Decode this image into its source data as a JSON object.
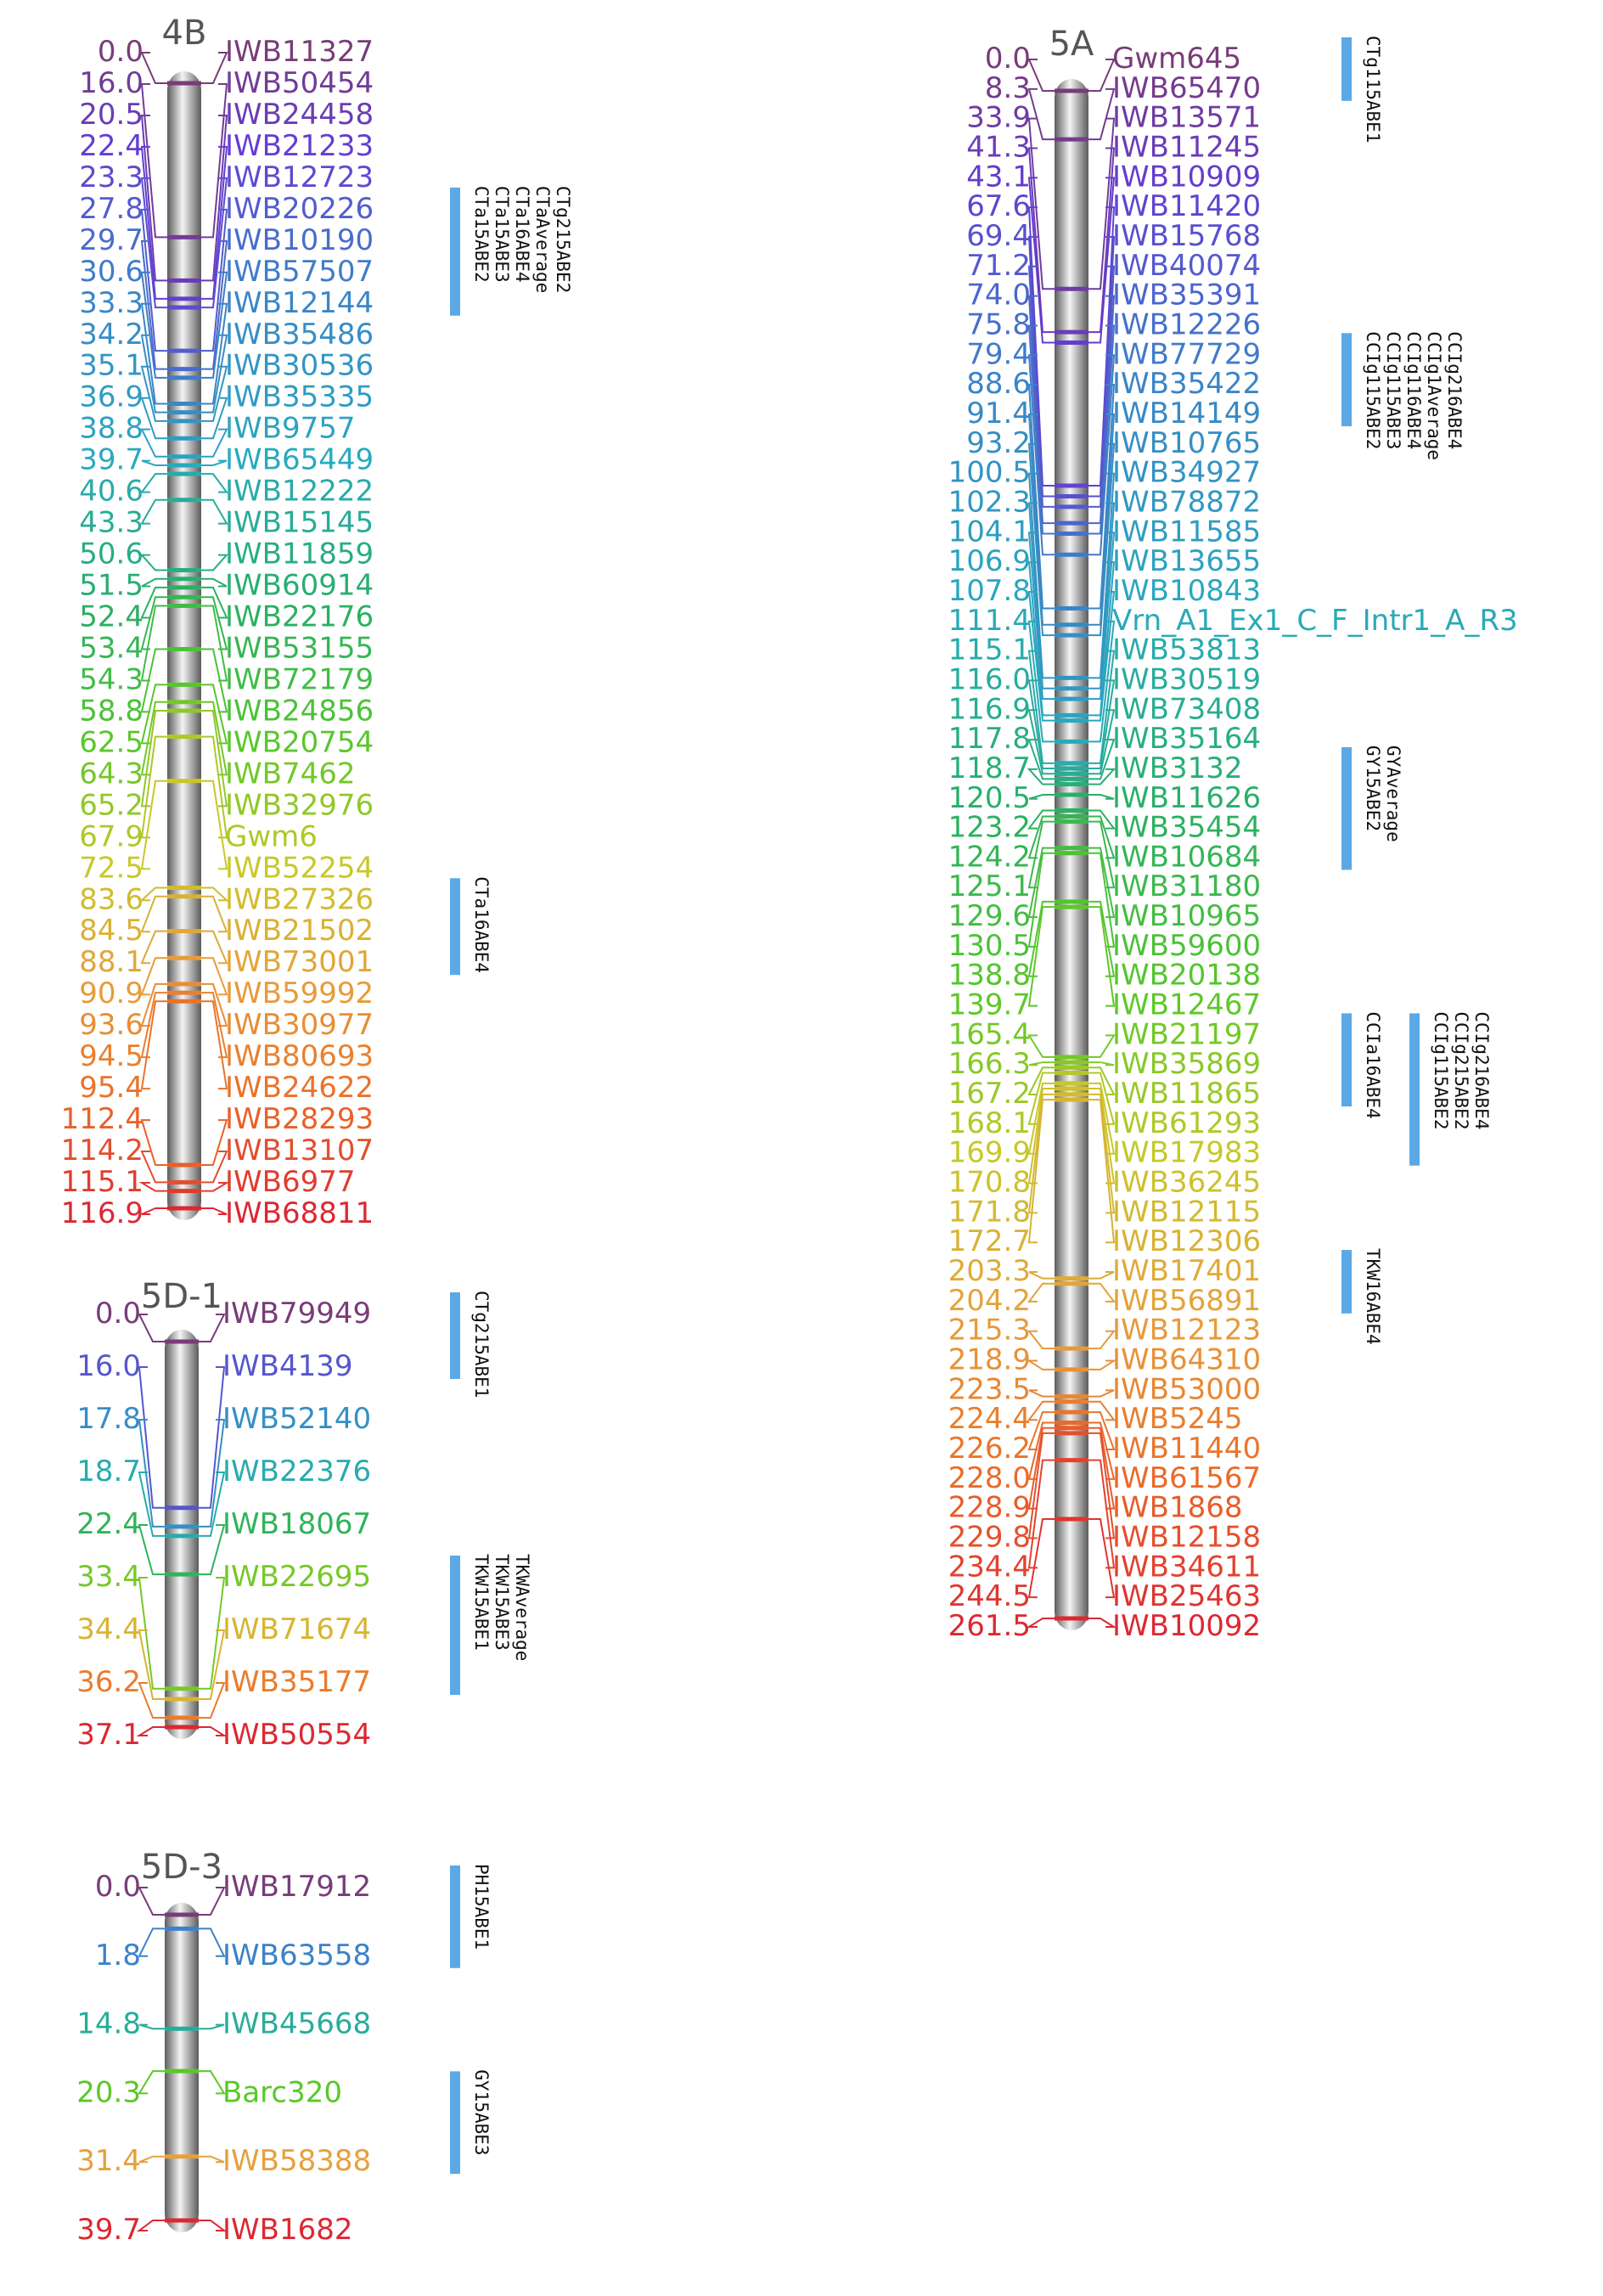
{
  "colors": {
    "qtl_bar": "#5aa9e6",
    "chromosome_light": "#f4f4f4",
    "chromosome_mid": "#b8b8b8",
    "chromosome_dark": "#5c5c5c"
  },
  "linkage_groups": [
    {
      "id": "4B",
      "title": "4B",
      "max_cM": 116.9,
      "markers": [
        {
          "cM": 0.0,
          "pos": "0.0",
          "name": "IWB11327"
        },
        {
          "cM": 16.0,
          "pos": "16.0",
          "name": "IWB50454"
        },
        {
          "cM": 20.5,
          "pos": "20.5",
          "name": "IWB24458"
        },
        {
          "cM": 22.4,
          "pos": "22.4",
          "name": "IWB21233"
        },
        {
          "cM": 23.3,
          "pos": "23.3",
          "name": "IWB12723"
        },
        {
          "cM": 27.8,
          "pos": "27.8",
          "name": "IWB20226"
        },
        {
          "cM": 29.7,
          "pos": "29.7",
          "name": "IWB10190"
        },
        {
          "cM": 30.6,
          "pos": "30.6",
          "name": "IWB57507"
        },
        {
          "cM": 33.3,
          "pos": "33.3",
          "name": "IWB12144"
        },
        {
          "cM": 34.2,
          "pos": "34.2",
          "name": "IWB35486"
        },
        {
          "cM": 35.1,
          "pos": "35.1",
          "name": "IWB30536"
        },
        {
          "cM": 36.9,
          "pos": "36.9",
          "name": "IWB35335"
        },
        {
          "cM": 38.8,
          "pos": "38.8",
          "name": "IWB9757"
        },
        {
          "cM": 39.7,
          "pos": "39.7",
          "name": "IWB65449"
        },
        {
          "cM": 40.6,
          "pos": "40.6",
          "name": "IWB12222"
        },
        {
          "cM": 43.3,
          "pos": "43.3",
          "name": "IWB15145"
        },
        {
          "cM": 50.6,
          "pos": "50.6",
          "name": "IWB11859"
        },
        {
          "cM": 51.5,
          "pos": "51.5",
          "name": "IWB60914"
        },
        {
          "cM": 52.4,
          "pos": "52.4",
          "name": "IWB22176"
        },
        {
          "cM": 53.4,
          "pos": "53.4",
          "name": "IWB53155"
        },
        {
          "cM": 54.3,
          "pos": "54.3",
          "name": "IWB72179"
        },
        {
          "cM": 58.8,
          "pos": "58.8",
          "name": "IWB24856"
        },
        {
          "cM": 62.5,
          "pos": "62.5",
          "name": "IWB20754"
        },
        {
          "cM": 64.3,
          "pos": "64.3",
          "name": "IWB7462"
        },
        {
          "cM": 65.2,
          "pos": "65.2",
          "name": "IWB32976"
        },
        {
          "cM": 67.9,
          "pos": "67.9",
          "name": "Gwm6"
        },
        {
          "cM": 72.5,
          "pos": "72.5",
          "name": "IWB52254"
        },
        {
          "cM": 83.6,
          "pos": "83.6",
          "name": "IWB27326"
        },
        {
          "cM": 84.5,
          "pos": "84.5",
          "name": "IWB21502"
        },
        {
          "cM": 88.1,
          "pos": "88.1",
          "name": "IWB73001"
        },
        {
          "cM": 90.9,
          "pos": "90.9",
          "name": "IWB59992"
        },
        {
          "cM": 93.6,
          "pos": "93.6",
          "name": "IWB30977"
        },
        {
          "cM": 94.5,
          "pos": "94.5",
          "name": "IWB80693"
        },
        {
          "cM": 95.4,
          "pos": "95.4",
          "name": "IWB24622"
        },
        {
          "cM": 112.4,
          "pos": "112.4",
          "name": "IWB28293"
        },
        {
          "cM": 114.2,
          "pos": "114.2",
          "name": "IWB13107"
        },
        {
          "cM": 115.1,
          "pos": "115.1",
          "name": "IWB6977"
        },
        {
          "cM": 116.9,
          "pos": "116.9",
          "name": "IWB68811"
        }
      ],
      "qtls": [
        {
          "labels": [
            "CTg215ABE2",
            "CTaAverage",
            "CTa16ABE4",
            "CTa15ABE3",
            "CTa15ABE2"
          ],
          "from_cM": 27.8,
          "to_cM": 33.3
        },
        {
          "labels": [
            "CTa16ABE4"
          ],
          "from_cM": 83.6,
          "to_cM": 88.1
        }
      ]
    },
    {
      "id": "5A",
      "title": "5A",
      "max_cM": 261.5,
      "markers": [
        {
          "cM": 0.0,
          "pos": "0.0",
          "name": "Gwm645"
        },
        {
          "cM": 8.3,
          "pos": "8.3",
          "name": "IWB65470"
        },
        {
          "cM": 33.9,
          "pos": "33.9",
          "name": "IWB13571"
        },
        {
          "cM": 41.3,
          "pos": "41.3",
          "name": "IWB11245"
        },
        {
          "cM": 43.1,
          "pos": "43.1",
          "name": "IWB10909"
        },
        {
          "cM": 67.6,
          "pos": "67.6",
          "name": "IWB11420"
        },
        {
          "cM": 69.4,
          "pos": "69.4",
          "name": "IWB15768"
        },
        {
          "cM": 71.2,
          "pos": "71.2",
          "name": "IWB40074"
        },
        {
          "cM": 74.0,
          "pos": "74.0",
          "name": "IWB35391"
        },
        {
          "cM": 75.8,
          "pos": "75.8",
          "name": "IWB12226"
        },
        {
          "cM": 79.4,
          "pos": "79.4",
          "name": "IWB77729"
        },
        {
          "cM": 88.6,
          "pos": "88.6",
          "name": "IWB35422"
        },
        {
          "cM": 91.4,
          "pos": "91.4",
          "name": "IWB14149"
        },
        {
          "cM": 93.2,
          "pos": "93.2",
          "name": "IWB10765"
        },
        {
          "cM": 100.5,
          "pos": "100.5",
          "name": "IWB34927"
        },
        {
          "cM": 102.3,
          "pos": "102.3",
          "name": "IWB78872"
        },
        {
          "cM": 104.1,
          "pos": "104.1",
          "name": "IWB11585"
        },
        {
          "cM": 106.9,
          "pos": "106.9",
          "name": "IWB13655"
        },
        {
          "cM": 107.8,
          "pos": "107.8",
          "name": "IWB10843"
        },
        {
          "cM": 111.4,
          "pos": "111.4",
          "name": "Vrn_A1_Ex1_C_F_Intr1_A_R3"
        },
        {
          "cM": 115.1,
          "pos": "115.1",
          "name": "IWB53813"
        },
        {
          "cM": 116.0,
          "pos": "116.0",
          "name": "IWB30519"
        },
        {
          "cM": 116.9,
          "pos": "116.9",
          "name": "IWB73408"
        },
        {
          "cM": 117.8,
          "pos": "117.8",
          "name": "IWB35164"
        },
        {
          "cM": 118.7,
          "pos": "118.7",
          "name": "IWB3132"
        },
        {
          "cM": 120.5,
          "pos": "120.5",
          "name": "IWB11626"
        },
        {
          "cM": 123.2,
          "pos": "123.2",
          "name": "IWB35454"
        },
        {
          "cM": 124.2,
          "pos": "124.2",
          "name": "IWB10684"
        },
        {
          "cM": 125.1,
          "pos": "125.1",
          "name": "IWB31180"
        },
        {
          "cM": 129.6,
          "pos": "129.6",
          "name": "IWB10965"
        },
        {
          "cM": 130.5,
          "pos": "130.5",
          "name": "IWB59600"
        },
        {
          "cM": 138.8,
          "pos": "138.8",
          "name": "IWB20138"
        },
        {
          "cM": 139.7,
          "pos": "139.7",
          "name": "IWB12467"
        },
        {
          "cM": 165.4,
          "pos": "165.4",
          "name": "IWB21197"
        },
        {
          "cM": 166.3,
          "pos": "166.3",
          "name": "IWB35869"
        },
        {
          "cM": 167.2,
          "pos": "167.2",
          "name": "IWB11865"
        },
        {
          "cM": 168.1,
          "pos": "168.1",
          "name": "IWB61293"
        },
        {
          "cM": 169.9,
          "pos": "169.9",
          "name": "IWB17983"
        },
        {
          "cM": 170.8,
          "pos": "170.8",
          "name": "IWB36245"
        },
        {
          "cM": 171.8,
          "pos": "171.8",
          "name": "IWB12115"
        },
        {
          "cM": 172.7,
          "pos": "172.7",
          "name": "IWB12306"
        },
        {
          "cM": 203.3,
          "pos": "203.3",
          "name": "IWB17401"
        },
        {
          "cM": 204.2,
          "pos": "204.2",
          "name": "IWB56891"
        },
        {
          "cM": 215.3,
          "pos": "215.3",
          "name": "IWB12123"
        },
        {
          "cM": 218.9,
          "pos": "218.9",
          "name": "IWB64310"
        },
        {
          "cM": 223.5,
          "pos": "223.5",
          "name": "IWB53000"
        },
        {
          "cM": 224.4,
          "pos": "224.4",
          "name": "IWB5245"
        },
        {
          "cM": 226.2,
          "pos": "226.2",
          "name": "IWB11440"
        },
        {
          "cM": 228.0,
          "pos": "228.0",
          "name": "IWB61567"
        },
        {
          "cM": 228.9,
          "pos": "228.9",
          "name": "IWB1868"
        },
        {
          "cM": 229.8,
          "pos": "229.8",
          "name": "IWB12158"
        },
        {
          "cM": 234.4,
          "pos": "234.4",
          "name": "IWB34611"
        },
        {
          "cM": 244.5,
          "pos": "244.5",
          "name": "IWB25463"
        },
        {
          "cM": 261.5,
          "pos": "261.5",
          "name": "IWB10092"
        }
      ],
      "qtls": [
        {
          "labels": [
            "CTg115ABE1"
          ],
          "from_cM": 0.0,
          "to_cM": 8.3
        },
        {
          "labels": [
            "CCIg216ABE4",
            "CCIg1Average",
            "CCIg116ABE4",
            "CCIg115ABE3",
            "CCIg115ABE2"
          ],
          "from_cM": 79.4,
          "to_cM": 91.4
        },
        {
          "labels": [
            "GYAverage",
            "GY15ABE2"
          ],
          "from_cM": 118.7,
          "to_cM": 124.2
        },
        {
          "labels": [
            "CCIa16ABE4"
          ],
          "from_cM": 165.4,
          "to_cM": 167.2
        },
        {
          "labels": [
            "CCIg216ABE4",
            "CCIg215ABE2",
            "CCIg115ABE2"
          ],
          "from_cM": 165.4,
          "to_cM": 169.9,
          "offset": 1
        },
        {
          "labels": [
            "TKW16ABE4"
          ],
          "from_cM": 203.3,
          "to_cM": 204.2
        }
      ]
    },
    {
      "id": "5D-1",
      "title": "5D-1",
      "max_cM": 37.1,
      "markers": [
        {
          "cM": 0.0,
          "pos": "0.0",
          "name": "IWB79949"
        },
        {
          "cM": 16.0,
          "pos": "16.0",
          "name": "IWB4139"
        },
        {
          "cM": 17.8,
          "pos": "17.8",
          "name": "IWB52140"
        },
        {
          "cM": 18.7,
          "pos": "18.7",
          "name": "IWB22376"
        },
        {
          "cM": 22.4,
          "pos": "22.4",
          "name": "IWB18067"
        },
        {
          "cM": 33.4,
          "pos": "33.4",
          "name": "IWB22695"
        },
        {
          "cM": 34.4,
          "pos": "34.4",
          "name": "IWB71674"
        },
        {
          "cM": 36.2,
          "pos": "36.2",
          "name": "IWB35177"
        },
        {
          "cM": 37.1,
          "pos": "37.1",
          "name": "IWB50554"
        }
      ],
      "qtls": [
        {
          "labels": [
            "CTg215ABE1"
          ],
          "from_cM": 0.0,
          "to_cM": 16.0
        },
        {
          "labels": [
            "TKWAverage",
            "TKW15ABE3",
            "TKW15ABE1"
          ],
          "from_cM": 33.4,
          "to_cM": 36.2
        }
      ]
    },
    {
      "id": "5D-3",
      "title": "5D-3",
      "max_cM": 39.7,
      "markers": [
        {
          "cM": 0.0,
          "pos": "0.0",
          "name": "IWB17912"
        },
        {
          "cM": 1.8,
          "pos": "1.8",
          "name": "IWB63558"
        },
        {
          "cM": 14.8,
          "pos": "14.8",
          "name": "IWB45668"
        },
        {
          "cM": 20.3,
          "pos": "20.3",
          "name": "Barc320"
        },
        {
          "cM": 31.4,
          "pos": "31.4",
          "name": "IWB58388"
        },
        {
          "cM": 39.7,
          "pos": "39.7",
          "name": "IWB1682"
        }
      ],
      "qtls": [
        {
          "labels": [
            "PH15ABE1"
          ],
          "from_cM": 0.0,
          "to_cM": 1.8
        },
        {
          "labels": [
            "GY15ABE3"
          ],
          "from_cM": 20.3,
          "to_cM": 31.4
        }
      ]
    }
  ]
}
